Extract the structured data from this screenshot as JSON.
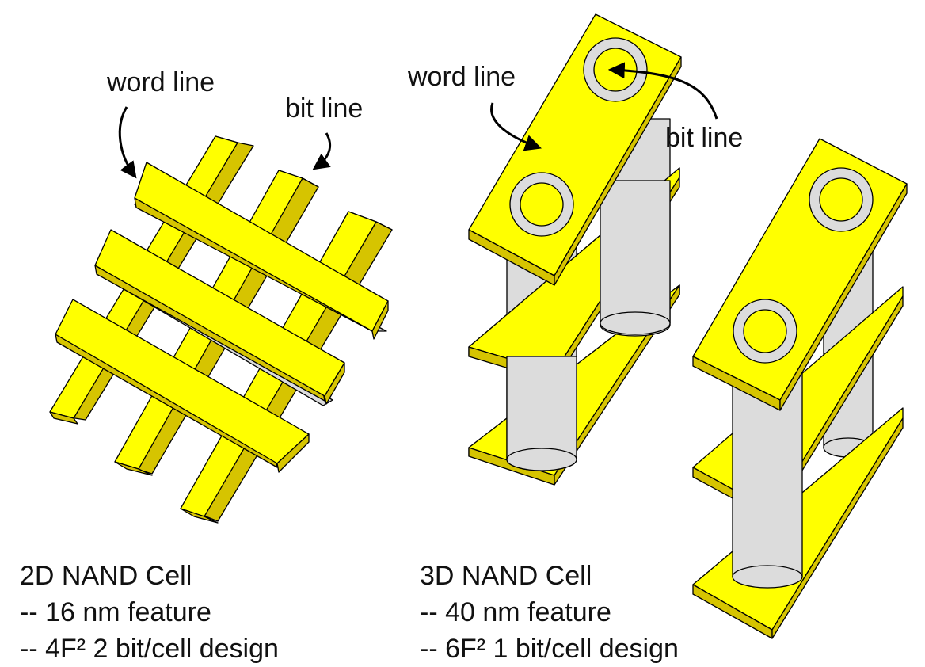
{
  "colors": {
    "electrode_top": "#ffff00",
    "electrode_side": "#d6c400",
    "pillar": "#dcdcdc",
    "outline": "#000000",
    "text": "#111111"
  },
  "labels_2d": {
    "word_line": "word line",
    "bit_line": "bit line"
  },
  "labels_3d": {
    "word_line": "word line",
    "bit_line": "bit line"
  },
  "caption_2d": {
    "title": "2D NAND Cell",
    "line1": "-- 16 nm feature",
    "line2": "-- 4F² 2 bit/cell design"
  },
  "caption_3d": {
    "title": "3D NAND Cell",
    "line1": "-- 40 nm feature",
    "line2": "-- 6F² 1 bit/cell design"
  }
}
